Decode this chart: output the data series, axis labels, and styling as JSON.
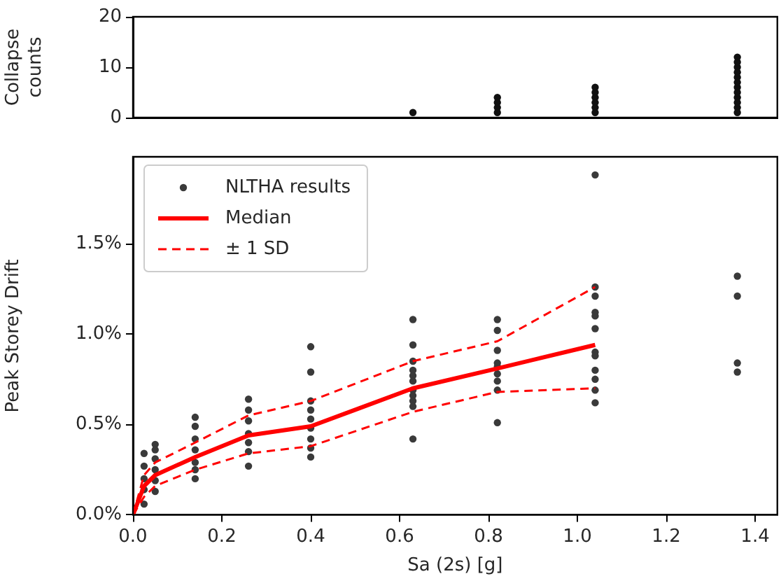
{
  "chart_data": [
    {
      "type": "scatter",
      "ylabel": "Collapse\ncounts",
      "xlim": [
        0,
        1.45
      ],
      "ylim": [
        0,
        20
      ],
      "yticks": [
        0,
        10,
        20
      ],
      "tick_labels": "y",
      "marker": "circle",
      "grid": false,
      "legend": false,
      "series": [
        {
          "color": "#111111",
          "x": [
            0.63,
            0.82,
            0.82,
            0.82,
            0.82,
            1.04,
            1.04,
            1.04,
            1.04,
            1.04,
            1.04,
            1.36,
            1.36,
            1.36,
            1.36,
            1.36,
            1.36,
            1.36,
            1.36,
            1.36,
            1.36,
            1.36,
            1.36
          ],
          "values": [
            1,
            1,
            2,
            3,
            4,
            1,
            2,
            3,
            4,
            5,
            6,
            1,
            2,
            3,
            4,
            5,
            6,
            7,
            8,
            9,
            10,
            11,
            12
          ]
        }
      ]
    },
    {
      "type": "scatter",
      "xlabel": "Sa (2s) [g]",
      "ylabel": "Peak Storey Drift",
      "xlim": [
        0,
        1.45
      ],
      "xticks": [
        {
          "value": 0,
          "label": "0.0"
        },
        {
          "value": 0.2,
          "label": "0.2"
        },
        {
          "value": 0.4,
          "label": "0.4"
        },
        {
          "value": 0.6,
          "label": "0.6"
        },
        {
          "value": 0.8,
          "label": "0.8"
        },
        {
          "value": 1.0,
          "label": "1.0"
        },
        {
          "value": 1.2,
          "label": "1.2"
        },
        {
          "value": 1.4,
          "label": "1.4"
        }
      ],
      "ylim": [
        0,
        1.98
      ],
      "yticks": [
        {
          "value": 0,
          "label": "0.0%"
        },
        {
          "value": 0.5,
          "label": "0.5%"
        },
        {
          "value": 1.0,
          "label": "1.0%"
        },
        {
          "value": 1.5,
          "label": "1.5%"
        }
      ],
      "marker": "circle",
      "grid": false,
      "legend": "top left",
      "series": [
        {
          "name": "NLTHA results",
          "color": "#3a3a3a",
          "x": [
            0.025,
            0.025,
            0.025,
            0.025,
            0.025,
            0.05,
            0.05,
            0.05,
            0.05,
            0.05,
            0.05,
            0.14,
            0.14,
            0.14,
            0.14,
            0.14,
            0.14,
            0.14,
            0.26,
            0.26,
            0.26,
            0.26,
            0.26,
            0.26,
            0.26,
            0.4,
            0.4,
            0.4,
            0.4,
            0.4,
            0.4,
            0.4,
            0.4,
            0.4,
            0.63,
            0.63,
            0.63,
            0.63,
            0.63,
            0.63,
            0.63,
            0.63,
            0.63,
            0.63,
            0.63,
            0.82,
            0.82,
            0.82,
            0.82,
            0.82,
            0.82,
            0.82,
            0.82,
            0.82,
            1.04,
            1.04,
            1.04,
            1.04,
            1.04,
            1.04,
            1.04,
            1.04,
            1.04,
            1.04,
            1.04,
            1.04,
            1.36,
            1.36,
            1.36,
            1.36
          ],
          "values": [
            0.34,
            0.27,
            0.2,
            0.14,
            0.06,
            0.39,
            0.36,
            0.31,
            0.25,
            0.19,
            0.13,
            0.54,
            0.49,
            0.42,
            0.36,
            0.29,
            0.25,
            0.2,
            0.64,
            0.58,
            0.52,
            0.45,
            0.4,
            0.35,
            0.27,
            0.93,
            0.79,
            0.63,
            0.58,
            0.53,
            0.48,
            0.42,
            0.37,
            0.32,
            1.08,
            0.94,
            0.85,
            0.8,
            0.77,
            0.74,
            0.69,
            0.66,
            0.63,
            0.6,
            0.42,
            1.08,
            1.02,
            0.91,
            0.84,
            0.82,
            0.78,
            0.74,
            0.69,
            0.51,
            1.88,
            1.26,
            1.21,
            1.12,
            1.1,
            1.03,
            0.9,
            0.88,
            0.8,
            0.75,
            0.69,
            0.62,
            1.32,
            1.21,
            0.84,
            0.79
          ]
        },
        {
          "name": "Median",
          "type": "line",
          "color": "#ff0000",
          "line_style": "solid",
          "marker": "none",
          "x": [
            0,
            0.025,
            0.05,
            0.14,
            0.26,
            0.4,
            0.63,
            0.82,
            1.04
          ],
          "values": [
            0,
            0.16,
            0.22,
            0.32,
            0.44,
            0.49,
            0.7,
            0.81,
            0.94
          ]
        },
        {
          "name": "± 1 SD",
          "type": "line",
          "color": "#ff0000",
          "line_style": "dashed",
          "marker": "none",
          "x": [
            0,
            0.025,
            0.05,
            0.14,
            0.26,
            0.4,
            0.63,
            0.82,
            1.04
          ],
          "values": [
            0,
            0.22,
            0.29,
            0.4,
            0.55,
            0.63,
            0.85,
            0.96,
            1.26
          ]
        },
        {
          "type": "line",
          "color": "#ff0000",
          "line_style": "dashed",
          "marker": "none",
          "x": [
            0,
            0.025,
            0.05,
            0.14,
            0.26,
            0.4,
            0.63,
            0.82,
            1.04
          ],
          "values": [
            0,
            0.1,
            0.16,
            0.25,
            0.34,
            0.38,
            0.57,
            0.68,
            0.7
          ]
        }
      ]
    }
  ]
}
